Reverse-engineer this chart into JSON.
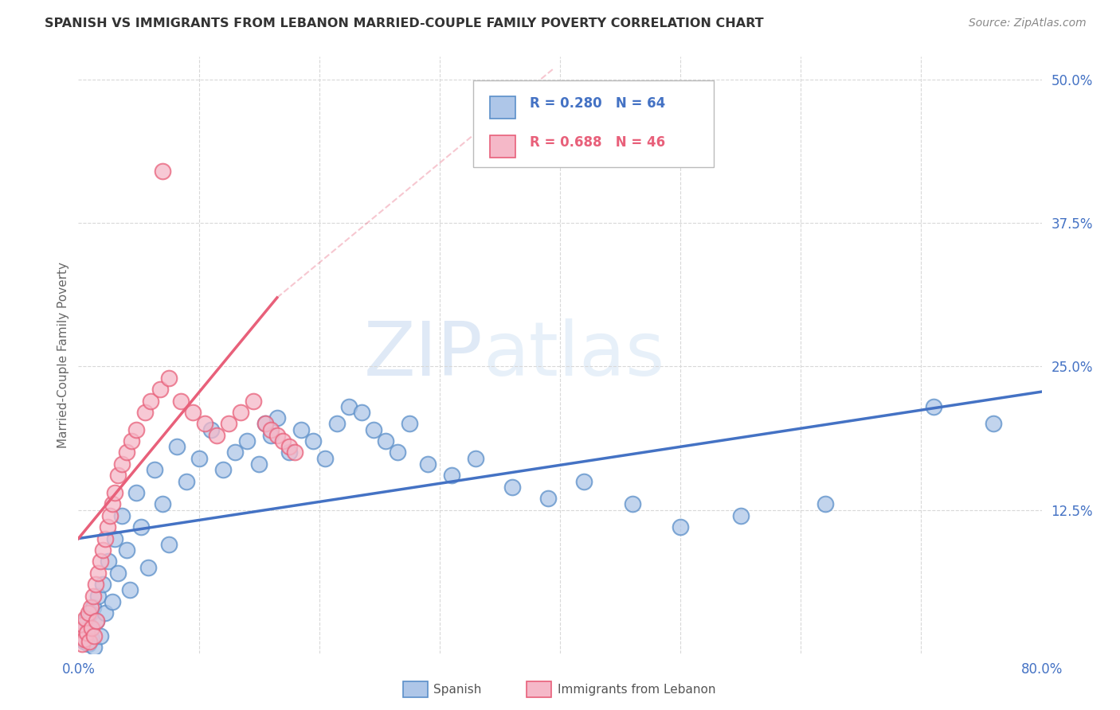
{
  "title": "SPANISH VS IMMIGRANTS FROM LEBANON MARRIED-COUPLE FAMILY POVERTY CORRELATION CHART",
  "source": "Source: ZipAtlas.com",
  "ylabel": "Married-Couple Family Poverty",
  "xlim": [
    0.0,
    0.8
  ],
  "ylim": [
    0.0,
    0.52
  ],
  "spanish_color": "#aec6e8",
  "spanish_edge_color": "#5b8fc9",
  "lebanon_color": "#f5b8c8",
  "lebanon_edge_color": "#e8607a",
  "spanish_line_color": "#4472c4",
  "lebanon_line_color": "#e8607a",
  "legend_r_spanish": "R = 0.280",
  "legend_n_spanish": "N = 64",
  "legend_r_lebanon": "R = 0.688",
  "legend_n_lebanon": "N = 46",
  "watermark_color": "#d5e5f5",
  "grid_color": "#d8d8d8",
  "tick_color": "#4472c4",
  "ylabel_color": "#666666",
  "source_color": "#888888",
  "title_color": "#333333",
  "spanish_x": [
    0.002,
    0.003,
    0.004,
    0.005,
    0.006,
    0.007,
    0.008,
    0.009,
    0.01,
    0.011,
    0.012,
    0.013,
    0.015,
    0.016,
    0.018,
    0.02,
    0.022,
    0.025,
    0.028,
    0.03,
    0.033,
    0.036,
    0.04,
    0.043,
    0.048,
    0.052,
    0.058,
    0.063,
    0.07,
    0.075,
    0.082,
    0.09,
    0.1,
    0.11,
    0.12,
    0.13,
    0.14,
    0.15,
    0.155,
    0.16,
    0.165,
    0.175,
    0.185,
    0.195,
    0.205,
    0.215,
    0.225,
    0.235,
    0.245,
    0.255,
    0.265,
    0.275,
    0.29,
    0.31,
    0.33,
    0.36,
    0.39,
    0.42,
    0.46,
    0.5,
    0.55,
    0.62,
    0.71,
    0.76
  ],
  "spanish_y": [
    0.015,
    0.02,
    0.025,
    0.01,
    0.018,
    0.03,
    0.008,
    0.022,
    0.035,
    0.012,
    0.04,
    0.005,
    0.028,
    0.05,
    0.015,
    0.06,
    0.035,
    0.08,
    0.045,
    0.1,
    0.07,
    0.12,
    0.09,
    0.055,
    0.14,
    0.11,
    0.075,
    0.16,
    0.13,
    0.095,
    0.18,
    0.15,
    0.17,
    0.195,
    0.16,
    0.175,
    0.185,
    0.165,
    0.2,
    0.19,
    0.205,
    0.175,
    0.195,
    0.185,
    0.17,
    0.2,
    0.215,
    0.21,
    0.195,
    0.185,
    0.175,
    0.2,
    0.165,
    0.155,
    0.17,
    0.145,
    0.135,
    0.15,
    0.13,
    0.11,
    0.12,
    0.13,
    0.215,
    0.2
  ],
  "lebanon_x": [
    0.001,
    0.002,
    0.003,
    0.004,
    0.005,
    0.006,
    0.007,
    0.008,
    0.009,
    0.01,
    0.011,
    0.012,
    0.013,
    0.014,
    0.015,
    0.016,
    0.018,
    0.02,
    0.022,
    0.024,
    0.026,
    0.028,
    0.03,
    0.033,
    0.036,
    0.04,
    0.044,
    0.048,
    0.055,
    0.06,
    0.068,
    0.075,
    0.085,
    0.095,
    0.105,
    0.115,
    0.125,
    0.135,
    0.145,
    0.155,
    0.16,
    0.165,
    0.17,
    0.175,
    0.07,
    0.18
  ],
  "lebanon_y": [
    0.015,
    0.02,
    0.008,
    0.025,
    0.012,
    0.03,
    0.018,
    0.035,
    0.01,
    0.04,
    0.022,
    0.05,
    0.015,
    0.06,
    0.028,
    0.07,
    0.08,
    0.09,
    0.1,
    0.11,
    0.12,
    0.13,
    0.14,
    0.155,
    0.165,
    0.175,
    0.185,
    0.195,
    0.21,
    0.22,
    0.23,
    0.24,
    0.22,
    0.21,
    0.2,
    0.19,
    0.2,
    0.21,
    0.22,
    0.2,
    0.195,
    0.19,
    0.185,
    0.18,
    0.42,
    0.175
  ],
  "sp_line_x0": 0.0,
  "sp_line_x1": 0.8,
  "sp_line_y0": 0.1,
  "sp_line_y1": 0.228,
  "leb_line_solid_x0": 0.0,
  "leb_line_solid_x1": 0.165,
  "leb_line_solid_y0": 0.1,
  "leb_line_solid_y1": 0.31,
  "leb_line_dash_x0": 0.165,
  "leb_line_dash_x1": 0.395,
  "leb_line_dash_y0": 0.31,
  "leb_line_dash_y1": 0.51
}
